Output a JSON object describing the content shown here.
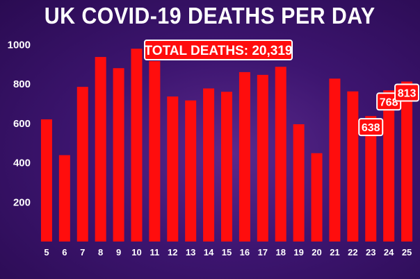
{
  "header": {
    "title": "UK COVID-19 DEATHS PER DAY"
  },
  "annotation": {
    "total_label": "TOTAL DEATHS: 20,319"
  },
  "colors": {
    "bar": "#ff0d0d",
    "background": "#3d1570",
    "text": "#ffffff",
    "label_border": "#ffffff"
  },
  "chart_data": {
    "type": "bar",
    "title": "UK COVID-19 DEATHS PER DAY",
    "xlabel": "",
    "ylabel": "",
    "categories": [
      "5",
      "6",
      "7",
      "8",
      "9",
      "10",
      "11",
      "12",
      "13",
      "14",
      "15",
      "16",
      "17",
      "18",
      "19",
      "20",
      "21",
      "22",
      "23",
      "24",
      "25"
    ],
    "values": [
      621,
      439,
      786,
      938,
      881,
      980,
      917,
      737,
      717,
      778,
      761,
      861,
      847,
      888,
      596,
      449,
      828,
      763,
      638,
      768,
      813
    ],
    "ylim": [
      0,
      1100
    ],
    "yticks": [
      200,
      400,
      600,
      800,
      1000
    ],
    "data_labels": [
      {
        "category": "23",
        "text": "638"
      },
      {
        "category": "24",
        "text": "768"
      },
      {
        "category": "25",
        "text": "813"
      }
    ],
    "grid": false,
    "legend": "none"
  }
}
